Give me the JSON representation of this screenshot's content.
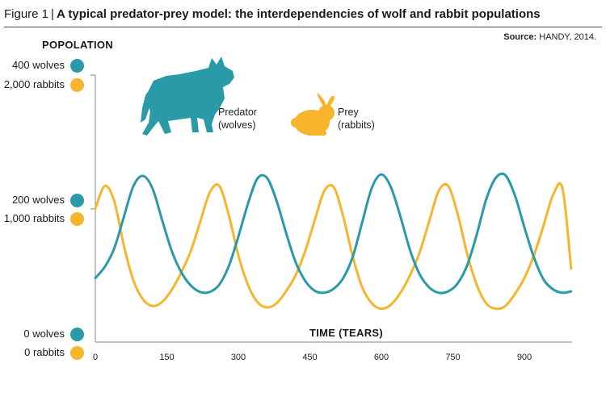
{
  "header": {
    "figure_label": "Figure 1",
    "separator": "|",
    "title": "A typical predator-prey model: the interdependencies of wolf and rabbit populations"
  },
  "source": {
    "label": "Source:",
    "text": "HANDY, 2014."
  },
  "colors": {
    "wolves": "#2a9aa8",
    "rabbits": "#f6b52c",
    "axis": "#888888"
  },
  "chart_data": {
    "type": "line",
    "title": "A typical predator-prey model: the interdependencies of wolf and rabbit populations",
    "xlabel": "TIME (TEARS)",
    "ylabel": "POPOLATION",
    "xlim": [
      0,
      1000
    ],
    "xticks": [
      0,
      150,
      300,
      450,
      600,
      750,
      900
    ],
    "y_ticks": [
      {
        "wolves": "400 wolves",
        "rabbits": "2,000 rabbits",
        "wolves_value": 400,
        "rabbits_value": 2000
      },
      {
        "wolves": "200 wolves",
        "rabbits": "1,000 rabbits",
        "wolves_value": 200,
        "rabbits_value": 1000
      },
      {
        "wolves": "0 wolves",
        "rabbits": "0 rabbits",
        "wolves_value": 0,
        "rabbits_value": 0
      }
    ],
    "series": [
      {
        "name": "Predator\n(wolves)",
        "icon": "wolf-icon",
        "units": "wolves",
        "x": [
          0,
          20,
          40,
          60,
          80,
          100,
          120,
          140,
          160,
          180,
          200,
          220,
          240,
          260,
          280,
          300,
          320,
          340,
          360,
          380,
          400,
          420,
          440,
          460,
          480,
          500,
          520,
          540,
          560,
          580,
          600,
          620,
          640,
          660,
          680,
          700,
          720,
          740,
          760,
          780,
          800,
          820,
          840,
          860,
          880,
          900,
          920,
          940,
          960,
          980,
          998
        ],
        "y": [
          96,
          113,
          141,
          188,
          234,
          249,
          230,
          183,
          137,
          105,
          85,
          75,
          75,
          86,
          114,
          158,
          207,
          245,
          246,
          212,
          164,
          120,
          92,
          77,
          74,
          80,
          96,
          128,
          180,
          231,
          251,
          232,
          188,
          138,
          102,
          82,
          74,
          76,
          88,
          115,
          161,
          214,
          246,
          250,
          220,
          172,
          127,
          94,
          79,
          74,
          76
        ]
      },
      {
        "name": "Prey\n(rabbits)",
        "icon": "rabbit-icon",
        "units": "rabbits",
        "x": [
          0,
          20,
          40,
          60,
          80,
          100,
          120,
          140,
          160,
          180,
          200,
          220,
          240,
          260,
          280,
          300,
          320,
          340,
          360,
          380,
          400,
          420,
          440,
          460,
          480,
          500,
          520,
          540,
          560,
          580,
          600,
          620,
          640,
          660,
          680,
          700,
          720,
          740,
          760,
          780,
          800,
          820,
          840,
          860,
          880,
          900,
          920,
          940,
          960,
          980,
          998
        ],
        "y": [
          1000,
          1170,
          1050,
          720,
          460,
          320,
          270,
          300,
          390,
          520,
          680,
          900,
          1120,
          1170,
          950,
          650,
          430,
          300,
          260,
          290,
          380,
          500,
          680,
          910,
          1130,
          1160,
          940,
          640,
          410,
          290,
          250,
          280,
          370,
          500,
          670,
          900,
          1130,
          1170,
          960,
          660,
          430,
          290,
          250,
          270,
          360,
          480,
          650,
          870,
          1100,
          1150,
          550
        ]
      }
    ],
    "grid": false,
    "legend": "icons-top"
  }
}
